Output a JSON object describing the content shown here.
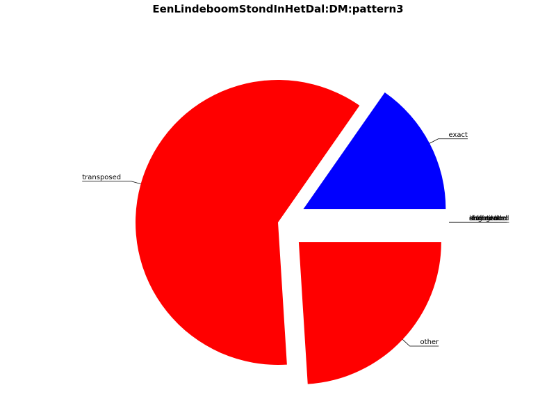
{
  "chart_data": {
    "type": "pie",
    "title": "EenLindeboomStondInHetDal:DM:pattern3",
    "start_angle_deg": 0,
    "slices": [
      {
        "label": "exact",
        "value": 15.3,
        "color": "#0000ff",
        "exploded": true
      },
      {
        "label": "transposed",
        "value": 60.7,
        "color": "#ff0000",
        "exploded": false
      },
      {
        "label": "other",
        "value": 24.0,
        "color": "#ff0000",
        "exploded": true
      },
      {
        "label": "inverted",
        "value": 0,
        "color": "#ff0000",
        "exploded": true
      },
      {
        "label": "augmented",
        "value": 0,
        "color": "#ff0000",
        "exploded": true
      },
      {
        "label": "diminished",
        "value": 0,
        "color": "#ff0000",
        "exploded": true
      },
      {
        "label": "retrograde",
        "value": 0,
        "color": "#ff0000",
        "exploded": true
      },
      {
        "label": "shifted",
        "value": 0,
        "color": "#ff0000",
        "exploded": true
      }
    ]
  }
}
